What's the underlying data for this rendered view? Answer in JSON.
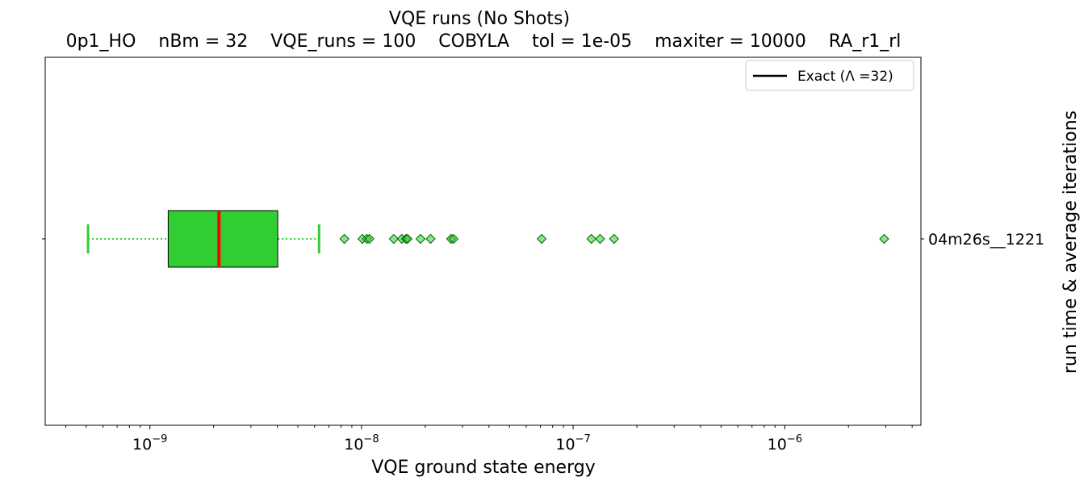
{
  "chart_data": {
    "type": "box",
    "title": "VQE runs (No Shots)",
    "subtitle": "0p1_HO    nBm = 32    VQE_runs = 100    COBYLA    tol = 1e-05    maxiter = 10000    RA_r1_rl",
    "xlabel": "VQE ground state energy",
    "ylabel": "run time & average iterations",
    "xscale": "log",
    "xlim": [
      3.2e-10,
      4.4e-06
    ],
    "x_ticks": [
      {
        "value": 1e-09,
        "base": "10",
        "exp": "−9"
      },
      {
        "value": 1e-08,
        "base": "10",
        "exp": "−8"
      },
      {
        "value": 1e-07,
        "base": "10",
        "exp": "−7"
      },
      {
        "value": 1e-06,
        "base": "10",
        "exp": "−6"
      }
    ],
    "category_label": "04m26s__1221",
    "box": {
      "whisker_low": 5.1e-10,
      "q1": 1.22e-09,
      "median": 2.12e-09,
      "q3": 4.02e-09,
      "whisker_high": 6.3e-09
    },
    "outliers": [
      8.3e-09,
      1.01e-08,
      1.06e-08,
      1.09e-08,
      1.42e-08,
      1.55e-08,
      1.62e-08,
      1.65e-08,
      1.9e-08,
      2.12e-08,
      2.65e-08,
      2.72e-08,
      7.1e-08,
      1.22e-07,
      1.34e-07,
      1.56e-07,
      2.95e-06
    ],
    "legend": {
      "location": "upper right",
      "entries": [
        {
          "label": "Exact (Λ =32)",
          "color": "#000000"
        }
      ]
    },
    "colors": {
      "box_fill": "#32cd32",
      "median": "#ff0000",
      "whisker": "#32cd32",
      "outlier_fill": "#32cd32",
      "outlier_edge": "#006400"
    }
  }
}
